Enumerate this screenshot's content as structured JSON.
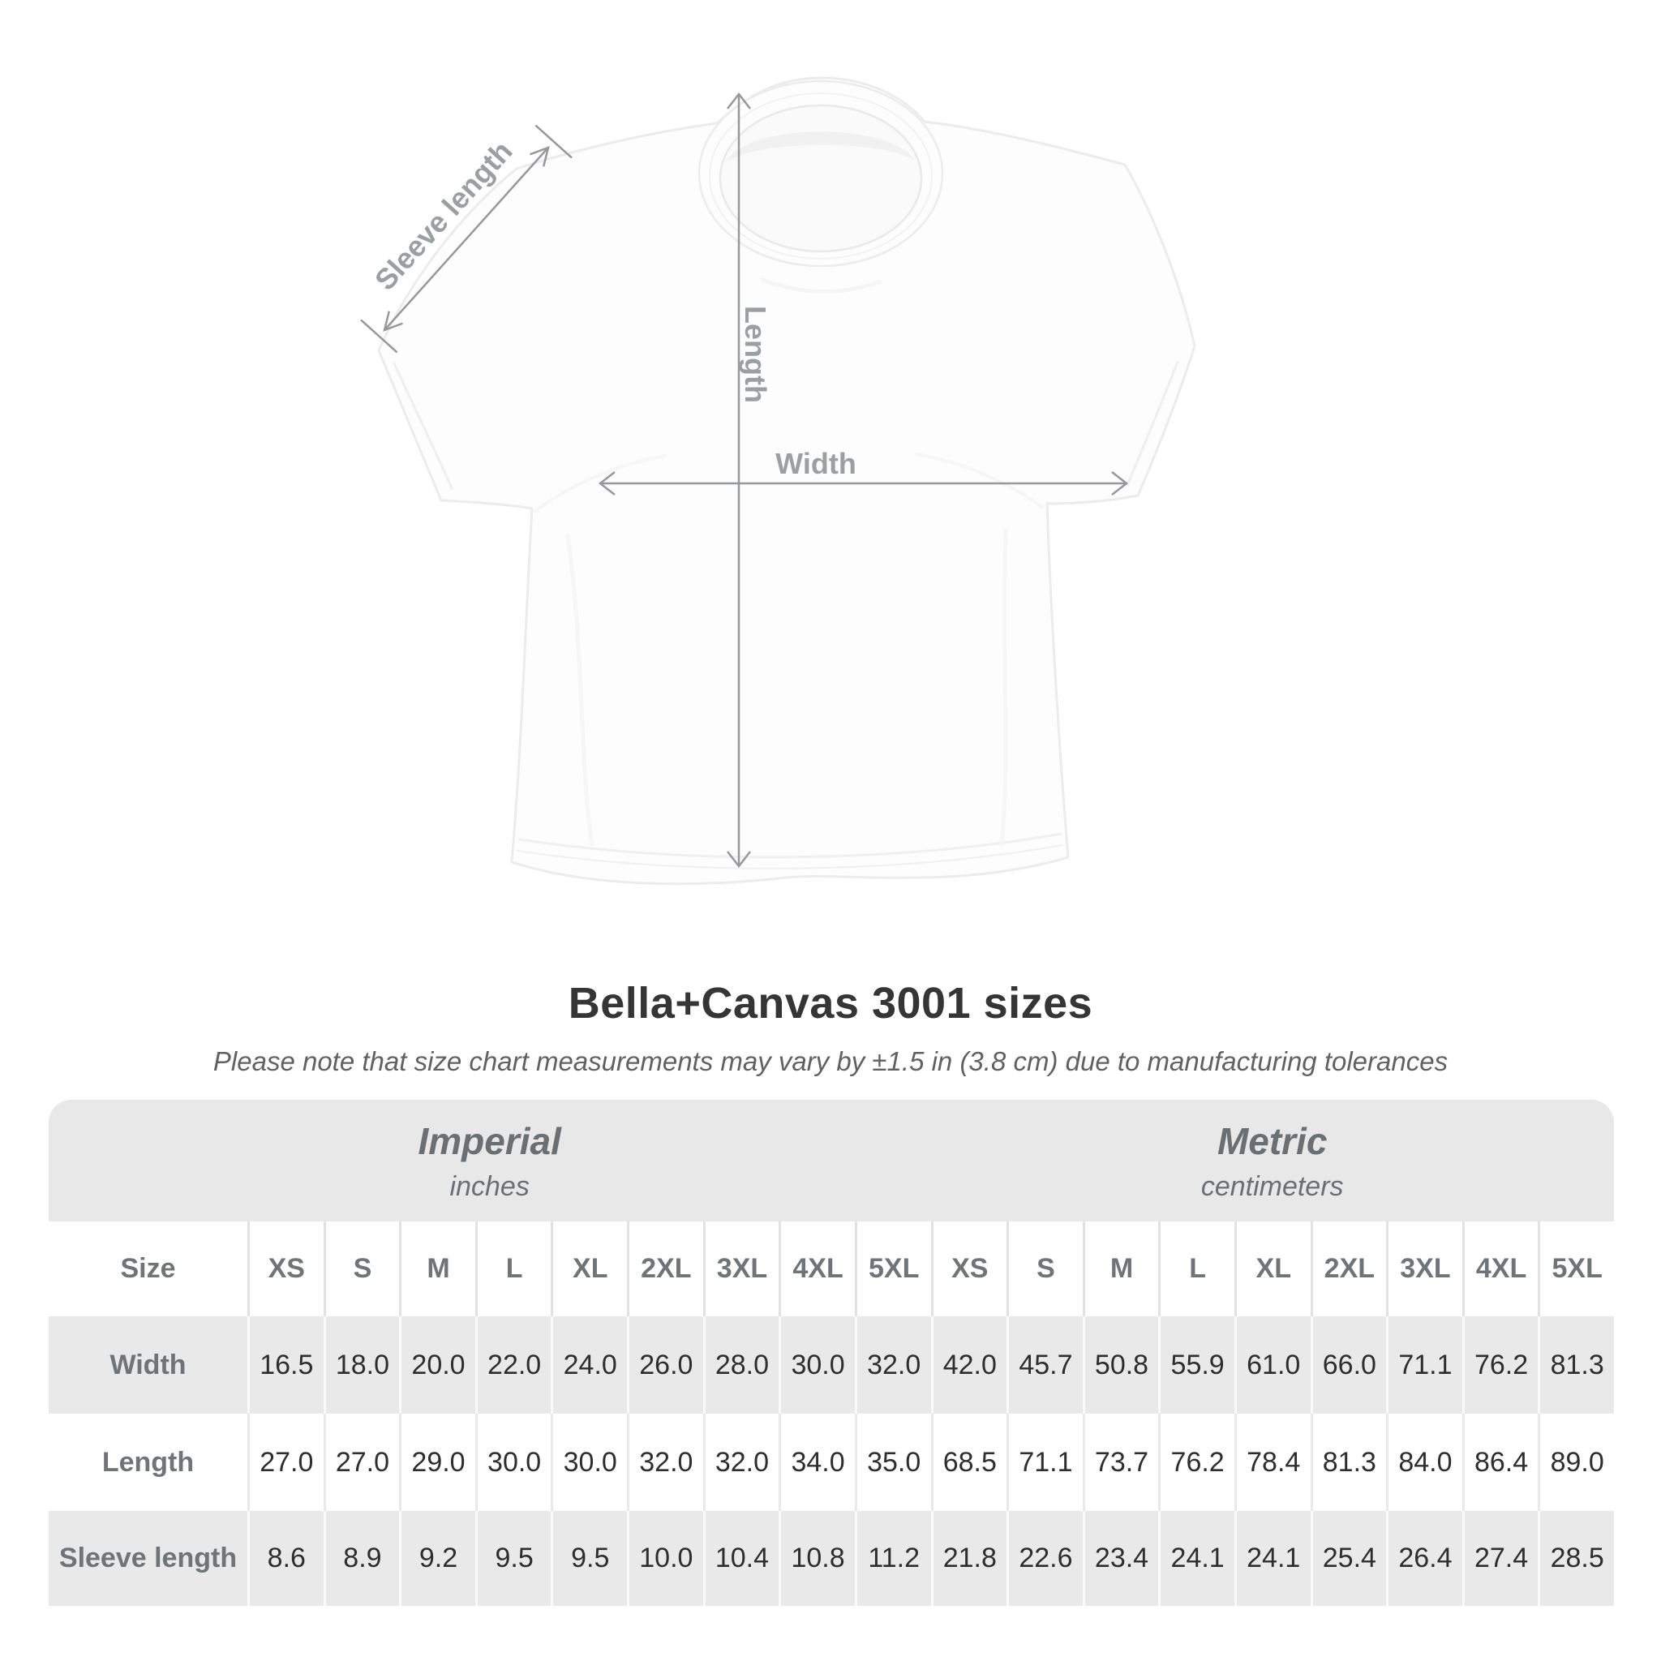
{
  "diagram": {
    "sleeve_length_label": "Sleeve length",
    "length_label": "Length",
    "width_label": "Width"
  },
  "heading": {
    "title": "Bella+Canvas 3001 sizes",
    "subtitle": "Please note that size chart measurements may vary by ±1.5 in (3.8 cm) due to manufacturing tolerances"
  },
  "size_table": {
    "unit_groups": [
      {
        "name": "Imperial",
        "unit": "inches"
      },
      {
        "name": "Metric",
        "unit": "centimeters"
      }
    ],
    "corner_header": "Size",
    "sizes": [
      "XS",
      "S",
      "M",
      "L",
      "XL",
      "2XL",
      "3XL",
      "4XL",
      "5XL"
    ],
    "rows": [
      {
        "label": "Width",
        "imperial": [
          "16.5",
          "18.0",
          "20.0",
          "22.0",
          "24.0",
          "26.0",
          "28.0",
          "30.0",
          "32.0"
        ],
        "metric": [
          "42.0",
          "45.7",
          "50.8",
          "55.9",
          "61.0",
          "66.0",
          "71.1",
          "76.2",
          "81.3"
        ]
      },
      {
        "label": "Length",
        "imperial": [
          "27.0",
          "27.0",
          "29.0",
          "30.0",
          "30.0",
          "32.0",
          "32.0",
          "34.0",
          "35.0"
        ],
        "metric": [
          "68.5",
          "71.1",
          "73.7",
          "76.2",
          "78.4",
          "81.3",
          "84.0",
          "86.4",
          "89.0"
        ]
      },
      {
        "label": "Sleeve length",
        "imperial": [
          "8.6",
          "8.9",
          "9.2",
          "9.5",
          "9.5",
          "10.0",
          "10.4",
          "10.8",
          "11.2"
        ],
        "metric": [
          "21.8",
          "22.6",
          "23.4",
          "24.1",
          "24.1",
          "25.4",
          "26.4",
          "27.4",
          "28.5"
        ]
      }
    ]
  },
  "colors": {
    "band_bg": "#e8e8e8",
    "row_alt_bg": "#e9e9e9",
    "row_bg": "#ffffff",
    "header_text": "#6e7477",
    "value_text": "#2e2e2e",
    "annotation": "#96989b",
    "title_text": "#353535",
    "subtitle_text": "#616161",
    "shirt_fill": "#fdfdfd",
    "shirt_outline": "#ececec"
  },
  "chart_data": {
    "type": "table",
    "title": "Bella+Canvas 3001 sizes",
    "note": "Please note that size chart measurements may vary by ±1.5 in (3.8 cm) due to manufacturing tolerances",
    "columns": [
      "XS",
      "S",
      "M",
      "L",
      "XL",
      "2XL",
      "3XL",
      "4XL",
      "5XL"
    ],
    "unit_groups": [
      "inches",
      "centimeters"
    ],
    "rows": [
      {
        "measurement": "Width",
        "inches": [
          16.5,
          18.0,
          20.0,
          22.0,
          24.0,
          26.0,
          28.0,
          30.0,
          32.0
        ],
        "centimeters": [
          42.0,
          45.7,
          50.8,
          55.9,
          61.0,
          66.0,
          71.1,
          76.2,
          81.3
        ]
      },
      {
        "measurement": "Length",
        "inches": [
          27.0,
          27.0,
          29.0,
          30.0,
          30.0,
          32.0,
          32.0,
          34.0,
          35.0
        ],
        "centimeters": [
          68.5,
          71.1,
          73.7,
          76.2,
          78.4,
          81.3,
          84.0,
          86.4,
          89.0
        ]
      },
      {
        "measurement": "Sleeve length",
        "inches": [
          8.6,
          8.9,
          9.2,
          9.5,
          9.5,
          10.0,
          10.4,
          10.8,
          11.2
        ],
        "centimeters": [
          21.8,
          22.6,
          23.4,
          24.1,
          24.1,
          25.4,
          26.4,
          27.4,
          28.5
        ]
      }
    ]
  }
}
